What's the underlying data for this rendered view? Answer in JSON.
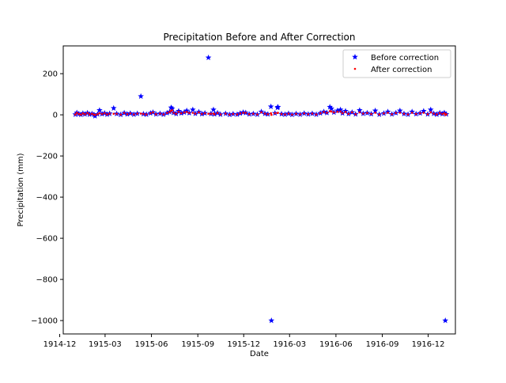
{
  "chart_data": {
    "type": "scatter",
    "title": "Precipitation Before and After Correction",
    "xlabel": "Date",
    "ylabel": "Precipitation (mm)",
    "x_type": "date",
    "xlim": [
      "1914-12-08",
      "1917-01-24"
    ],
    "ylim": [
      -1065,
      335
    ],
    "grid": false,
    "legend_position": "top-right",
    "x_ticks": [
      "1914-12",
      "1915-03",
      "1915-06",
      "1915-09",
      "1915-12",
      "1916-03",
      "1916-06",
      "1916-09",
      "1916-12"
    ],
    "y_ticks": [
      200,
      0,
      -200,
      -400,
      -600,
      -800,
      -1000
    ],
    "y_tick_labels": [
      "200",
      "0",
      "−200",
      "−400",
      "−600",
      "−800",
      "−1000"
    ],
    "series": [
      {
        "name": "Before correction",
        "marker": "star",
        "color": "#0000ff",
        "points": [
          [
            "1915-01-01",
            2
          ],
          [
            "1915-01-04",
            10
          ],
          [
            "1915-01-08",
            4
          ],
          [
            "1915-01-12",
            1
          ],
          [
            "1915-01-16",
            7
          ],
          [
            "1915-01-20",
            3
          ],
          [
            "1915-01-25",
            9
          ],
          [
            "1915-01-29",
            2
          ],
          [
            "1915-02-03",
            5
          ],
          [
            "1915-02-07",
            1
          ],
          [
            "1915-02-09",
            -6
          ],
          [
            "1915-02-14",
            3
          ],
          [
            "1915-02-18",
            22
          ],
          [
            "1915-02-23",
            4
          ],
          [
            "1915-02-28",
            8
          ],
          [
            "1915-03-05",
            2
          ],
          [
            "1915-03-10",
            6
          ],
          [
            "1915-03-18",
            32
          ],
          [
            "1915-03-24",
            5
          ],
          [
            "1915-04-01",
            1
          ],
          [
            "1915-04-08",
            9
          ],
          [
            "1915-04-14",
            3
          ],
          [
            "1915-04-20",
            7
          ],
          [
            "1915-04-27",
            2
          ],
          [
            "1915-05-04",
            6
          ],
          [
            "1915-05-11",
            90
          ],
          [
            "1915-05-16",
            4
          ],
          [
            "1915-05-22",
            2
          ],
          [
            "1915-05-30",
            8
          ],
          [
            "1915-06-04",
            12
          ],
          [
            "1915-06-10",
            3
          ],
          [
            "1915-06-18",
            6
          ],
          [
            "1915-06-25",
            2
          ],
          [
            "1915-07-02",
            9
          ],
          [
            "1915-07-07",
            14
          ],
          [
            "1915-07-10",
            35
          ],
          [
            "1915-07-12",
            30
          ],
          [
            "1915-07-15",
            10
          ],
          [
            "1915-07-20",
            5
          ],
          [
            "1915-07-25",
            18
          ],
          [
            "1915-07-30",
            8
          ],
          [
            "1915-08-05",
            12
          ],
          [
            "1915-08-10",
            20
          ],
          [
            "1915-08-15",
            9
          ],
          [
            "1915-08-22",
            25
          ],
          [
            "1915-08-27",
            6
          ],
          [
            "1915-09-03",
            14
          ],
          [
            "1915-09-09",
            4
          ],
          [
            "1915-09-15",
            8
          ],
          [
            "1915-09-22",
            278
          ],
          [
            "1915-09-27",
            5
          ],
          [
            "1915-10-04",
            3
          ],
          [
            "1915-10-10",
            9
          ],
          [
            "1915-10-16",
            2
          ],
          [
            "1915-10-02",
            25
          ],
          [
            "1915-10-26",
            6
          ],
          [
            "1915-11-03",
            1
          ],
          [
            "1915-11-10",
            4
          ],
          [
            "1915-11-18",
            2
          ],
          [
            "1915-11-24",
            7
          ],
          [
            "1915-11-30",
            12
          ],
          [
            "1915-12-05",
            10
          ],
          [
            "1915-12-12",
            3
          ],
          [
            "1915-12-20",
            5
          ],
          [
            "1915-12-28",
            2
          ],
          [
            "1916-01-05",
            15
          ],
          [
            "1916-01-12",
            6
          ],
          [
            "1916-01-18",
            3
          ],
          [
            "1916-01-24",
            40
          ],
          [
            "1916-01-25",
            -1000
          ],
          [
            "1916-02-01",
            8
          ],
          [
            "1916-02-06",
            35
          ],
          [
            "1916-02-07",
            38
          ],
          [
            "1916-02-14",
            4
          ],
          [
            "1916-02-21",
            2
          ],
          [
            "1916-02-28",
            6
          ],
          [
            "1916-03-06",
            1
          ],
          [
            "1916-03-14",
            5
          ],
          [
            "1916-03-22",
            2
          ],
          [
            "1916-03-30",
            7
          ],
          [
            "1916-04-07",
            3
          ],
          [
            "1916-04-15",
            6
          ],
          [
            "1916-04-23",
            2
          ],
          [
            "1916-05-01",
            8
          ],
          [
            "1916-05-08",
            15
          ],
          [
            "1916-05-14",
            10
          ],
          [
            "1916-05-20",
            38
          ],
          [
            "1916-05-23",
            30
          ],
          [
            "1916-05-28",
            12
          ],
          [
            "1916-06-04",
            20
          ],
          [
            "1916-06-10",
            25
          ],
          [
            "1916-06-14",
            8
          ],
          [
            "1916-06-20",
            18
          ],
          [
            "1916-06-26",
            5
          ],
          [
            "1916-07-03",
            12
          ],
          [
            "1916-07-10",
            3
          ],
          [
            "1916-07-18",
            22
          ],
          [
            "1916-07-25",
            6
          ],
          [
            "1916-08-02",
            9
          ],
          [
            "1916-08-10",
            4
          ],
          [
            "1916-08-18",
            20
          ],
          [
            "1916-08-26",
            2
          ],
          [
            "1916-09-04",
            7
          ],
          [
            "1916-09-12",
            15
          ],
          [
            "1916-09-20",
            3
          ],
          [
            "1916-09-28",
            9
          ],
          [
            "1916-10-06",
            20
          ],
          [
            "1916-10-14",
            5
          ],
          [
            "1916-10-22",
            2
          ],
          [
            "1916-10-30",
            15
          ],
          [
            "1916-11-07",
            4
          ],
          [
            "1916-11-15",
            8
          ],
          [
            "1916-11-22",
            18
          ],
          [
            "1916-11-30",
            3
          ],
          [
            "1916-12-06",
            25
          ],
          [
            "1916-12-12",
            6
          ],
          [
            "1916-12-18",
            2
          ],
          [
            "1916-12-24",
            9
          ],
          [
            "1916-12-29",
            4
          ],
          [
            "1917-01-02",
            10
          ],
          [
            "1917-01-04",
            -1000
          ],
          [
            "1917-01-06",
            3
          ]
        ]
      },
      {
        "name": "After correction",
        "marker": "point",
        "color": "#ff0000",
        "points": [
          [
            "1915-01-01",
            2
          ],
          [
            "1915-01-04",
            10
          ],
          [
            "1915-01-08",
            4
          ],
          [
            "1915-01-12",
            1
          ],
          [
            "1915-01-16",
            7
          ],
          [
            "1915-01-20",
            3
          ],
          [
            "1915-01-25",
            9
          ],
          [
            "1915-01-29",
            2
          ],
          [
            "1915-02-03",
            5
          ],
          [
            "1915-02-07",
            1
          ],
          [
            "1915-02-09",
            0
          ],
          [
            "1915-02-14",
            3
          ],
          [
            "1915-02-18",
            8
          ],
          [
            "1915-02-23",
            4
          ],
          [
            "1915-02-28",
            8
          ],
          [
            "1915-03-05",
            2
          ],
          [
            "1915-03-10",
            6
          ],
          [
            "1915-03-18",
            5
          ],
          [
            "1915-03-24",
            5
          ],
          [
            "1915-04-01",
            1
          ],
          [
            "1915-04-08",
            9
          ],
          [
            "1915-04-14",
            3
          ],
          [
            "1915-04-20",
            7
          ],
          [
            "1915-04-27",
            2
          ],
          [
            "1915-05-04",
            6
          ],
          [
            "1915-05-11",
            6
          ],
          [
            "1915-05-16",
            4
          ],
          [
            "1915-05-22",
            2
          ],
          [
            "1915-05-30",
            8
          ],
          [
            "1915-06-04",
            12
          ],
          [
            "1915-06-10",
            3
          ],
          [
            "1915-06-18",
            6
          ],
          [
            "1915-06-25",
            2
          ],
          [
            "1915-07-02",
            9
          ],
          [
            "1915-07-07",
            14
          ],
          [
            "1915-07-10",
            20
          ],
          [
            "1915-07-12",
            22
          ],
          [
            "1915-07-15",
            10
          ],
          [
            "1915-07-20",
            5
          ],
          [
            "1915-07-25",
            15
          ],
          [
            "1915-07-30",
            8
          ],
          [
            "1915-08-05",
            12
          ],
          [
            "1915-08-10",
            14
          ],
          [
            "1915-08-15",
            9
          ],
          [
            "1915-08-22",
            10
          ],
          [
            "1915-08-27",
            6
          ],
          [
            "1915-09-03",
            12
          ],
          [
            "1915-09-09",
            4
          ],
          [
            "1915-09-15",
            8
          ],
          [
            "1915-09-22",
            5
          ],
          [
            "1915-09-27",
            5
          ],
          [
            "1915-10-04",
            3
          ],
          [
            "1915-10-10",
            9
          ],
          [
            "1915-10-16",
            2
          ],
          [
            "1915-10-02",
            6
          ],
          [
            "1915-10-26",
            6
          ],
          [
            "1915-11-03",
            1
          ],
          [
            "1915-11-10",
            4
          ],
          [
            "1915-11-18",
            2
          ],
          [
            "1915-11-24",
            7
          ],
          [
            "1915-11-30",
            10
          ],
          [
            "1915-12-05",
            10
          ],
          [
            "1915-12-12",
            3
          ],
          [
            "1915-12-20",
            5
          ],
          [
            "1915-12-28",
            2
          ],
          [
            "1916-01-05",
            12
          ],
          [
            "1916-01-12",
            6
          ],
          [
            "1916-01-18",
            3
          ],
          [
            "1916-01-24",
            8
          ],
          [
            "1916-01-25",
            0
          ],
          [
            "1916-02-01",
            8
          ],
          [
            "1916-02-06",
            9
          ],
          [
            "1916-02-07",
            10
          ],
          [
            "1916-02-14",
            4
          ],
          [
            "1916-02-21",
            2
          ],
          [
            "1916-02-28",
            6
          ],
          [
            "1916-03-06",
            1
          ],
          [
            "1916-03-14",
            5
          ],
          [
            "1916-03-22",
            2
          ],
          [
            "1916-03-30",
            7
          ],
          [
            "1916-04-07",
            3
          ],
          [
            "1916-04-15",
            6
          ],
          [
            "1916-04-23",
            2
          ],
          [
            "1916-05-01",
            8
          ],
          [
            "1916-05-08",
            14
          ],
          [
            "1916-05-14",
            10
          ],
          [
            "1916-05-20",
            18
          ],
          [
            "1916-05-23",
            16
          ],
          [
            "1916-05-28",
            12
          ],
          [
            "1916-06-04",
            15
          ],
          [
            "1916-06-10",
            16
          ],
          [
            "1916-06-14",
            8
          ],
          [
            "1916-06-20",
            14
          ],
          [
            "1916-06-26",
            5
          ],
          [
            "1916-07-03",
            12
          ],
          [
            "1916-07-10",
            3
          ],
          [
            "1916-07-18",
            12
          ],
          [
            "1916-07-25",
            6
          ],
          [
            "1916-08-02",
            9
          ],
          [
            "1916-08-10",
            4
          ],
          [
            "1916-08-18",
            10
          ],
          [
            "1916-08-26",
            2
          ],
          [
            "1916-09-04",
            7
          ],
          [
            "1916-09-12",
            10
          ],
          [
            "1916-09-20",
            3
          ],
          [
            "1916-09-28",
            9
          ],
          [
            "1916-10-06",
            10
          ],
          [
            "1916-10-14",
            5
          ],
          [
            "1916-10-22",
            2
          ],
          [
            "1916-10-30",
            10
          ],
          [
            "1916-11-07",
            4
          ],
          [
            "1916-11-15",
            8
          ],
          [
            "1916-11-22",
            10
          ],
          [
            "1916-11-30",
            3
          ],
          [
            "1916-12-06",
            12
          ],
          [
            "1916-12-12",
            6
          ],
          [
            "1916-12-18",
            2
          ],
          [
            "1916-12-24",
            9
          ],
          [
            "1916-12-29",
            4
          ],
          [
            "1917-01-02",
            8
          ],
          [
            "1917-01-04",
            0
          ],
          [
            "1917-01-06",
            3
          ]
        ]
      }
    ]
  }
}
